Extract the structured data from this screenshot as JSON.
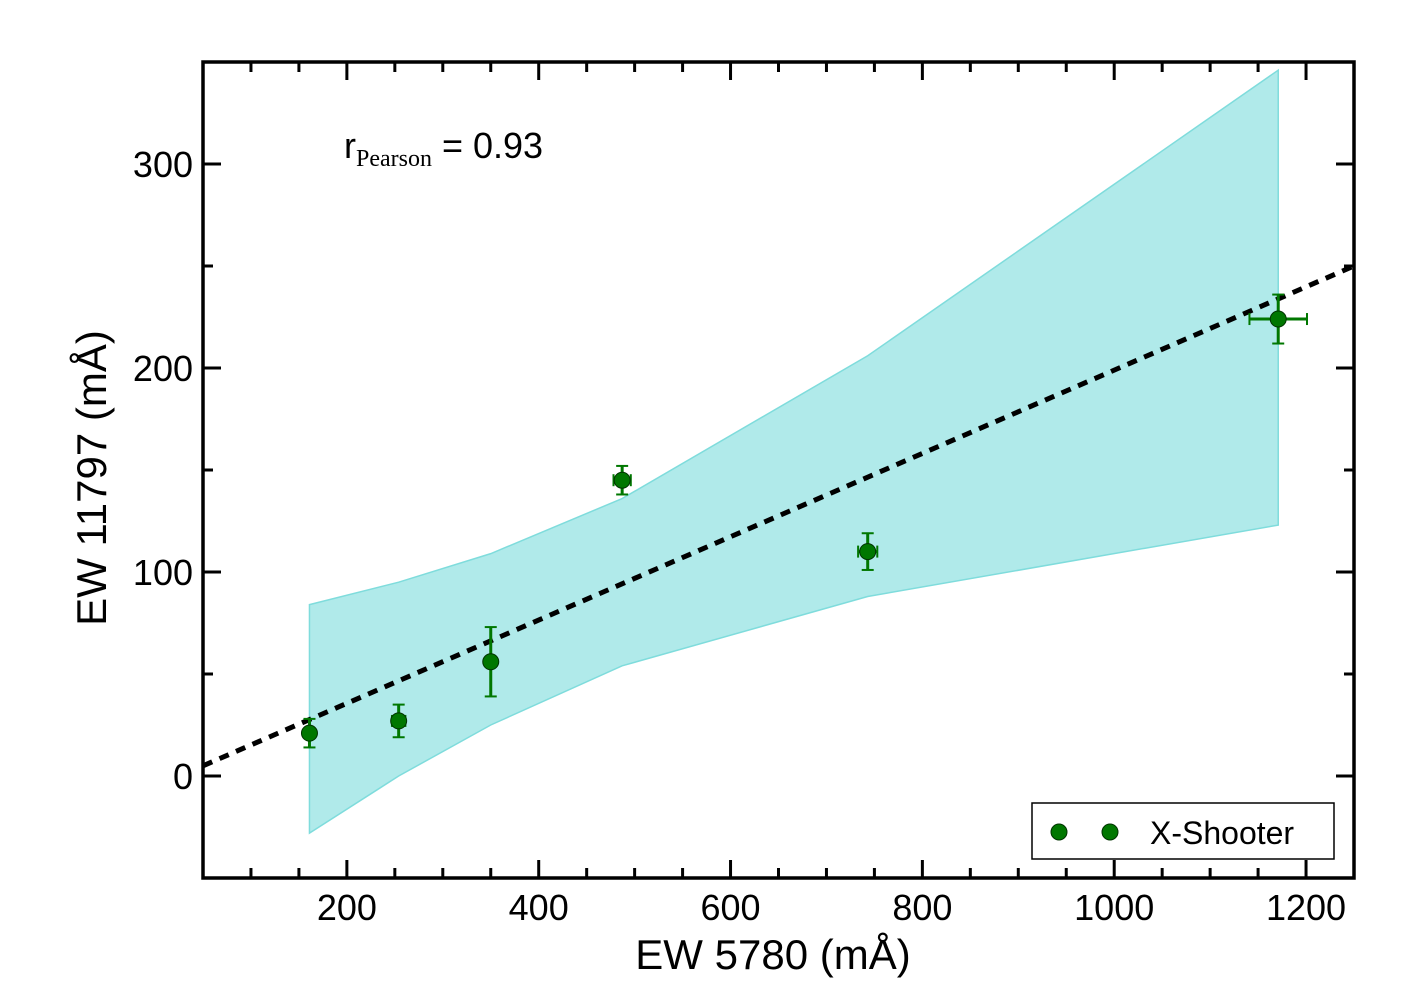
{
  "chart_data": {
    "type": "scatter",
    "title": "",
    "xlabel": "EW 5780 (mÅ)",
    "ylabel": "EW 11797 (mÅ)",
    "xlim": [
      50,
      1250
    ],
    "ylim": [
      -50,
      350
    ],
    "xticks": [
      200,
      400,
      600,
      800,
      1000,
      1200
    ],
    "yticks": [
      0,
      100,
      200,
      300
    ],
    "xtick_labels": [
      "200",
      "400",
      "600",
      "800",
      "1000",
      "1200"
    ],
    "ytick_labels": [
      "0",
      "100",
      "200",
      "300"
    ],
    "x_minor_step": 50,
    "y_minor_step": 50,
    "annotation": {
      "main": "r",
      "subscript": "Pearson",
      "rest": " = 0.93"
    },
    "series": [
      {
        "name": "X-Shooter",
        "color": "#007700",
        "x": [
          161,
          254,
          350,
          487,
          743,
          1171
        ],
        "y": [
          21,
          27,
          56,
          145,
          110,
          224
        ],
        "xerr": [
          4,
          7,
          5,
          9,
          10,
          30
        ],
        "yerr": [
          7,
          8,
          17,
          7,
          9,
          12
        ]
      }
    ],
    "fit_line": {
      "style": "dotted",
      "color": "#000000",
      "x": [
        50,
        1250
      ],
      "y": [
        5,
        250
      ]
    },
    "band": {
      "color": "#b0eaea",
      "edge_color": "#7fdcdc",
      "x": [
        161,
        254,
        350,
        487,
        743,
        1171
      ],
      "upper": [
        84,
        95,
        109,
        136,
        206,
        346
      ],
      "lower": [
        -28,
        0,
        25,
        54,
        88,
        123
      ]
    },
    "legend": {
      "position": "lower-right",
      "entries": [
        "X-Shooter"
      ]
    }
  }
}
